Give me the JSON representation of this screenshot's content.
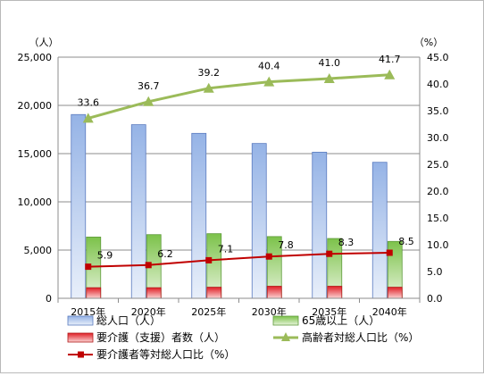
{
  "chart_data": {
    "type": "bar",
    "categories": [
      "2015年",
      "2020年",
      "2025年",
      "2030年",
      "2035年",
      "2040年"
    ],
    "left_axis": {
      "unit": "（人）",
      "min": 0,
      "max": 25000,
      "step": 5000,
      "tick_labels": [
        "0",
        "5,000",
        "10,000",
        "15,000",
        "20,000",
        "25,000"
      ]
    },
    "right_axis": {
      "unit": "（%）",
      "min": 0,
      "max": 45,
      "step": 5,
      "tick_labels": [
        "0.0",
        "5.0",
        "10.0",
        "15.0",
        "20.0",
        "25.0",
        "30.0",
        "35.0",
        "40.0",
        "45.0"
      ]
    },
    "series": [
      {
        "name": "総人口（人）",
        "kind": "bar",
        "axis": "left",
        "color": "#a9c4eb",
        "values": [
          19050,
          18000,
          17100,
          16050,
          15150,
          14100
        ]
      },
      {
        "name": "65歳以上（人）",
        "kind": "bar",
        "axis": "left",
        "color": "#9bcf6e",
        "values": [
          6350,
          6600,
          6700,
          6400,
          6200,
          5900
        ]
      },
      {
        "name": "要介護（支援）者数（人）",
        "kind": "bar",
        "axis": "left",
        "color": "#e52727",
        "values": [
          1100,
          1100,
          1150,
          1250,
          1250,
          1150
        ]
      },
      {
        "name": "高齢者対総人口比（%）",
        "kind": "line",
        "axis": "right",
        "color": "#9bbb59",
        "values": [
          33.6,
          36.7,
          39.2,
          40.4,
          41.0,
          41.7
        ],
        "labels": [
          "33.6",
          "36.7",
          "39.2",
          "40.4",
          "41.0",
          "41.7"
        ]
      },
      {
        "name": "要介護者等対総人口比（%）",
        "kind": "line",
        "axis": "right",
        "color": "#c00000",
        "values": [
          5.9,
          6.2,
          7.1,
          7.8,
          8.3,
          8.5
        ],
        "labels": [
          "5.9",
          "6.2",
          "7.1",
          "7.8",
          "8.3",
          "8.5"
        ]
      }
    ],
    "grid": true,
    "legend_position": "bottom"
  }
}
